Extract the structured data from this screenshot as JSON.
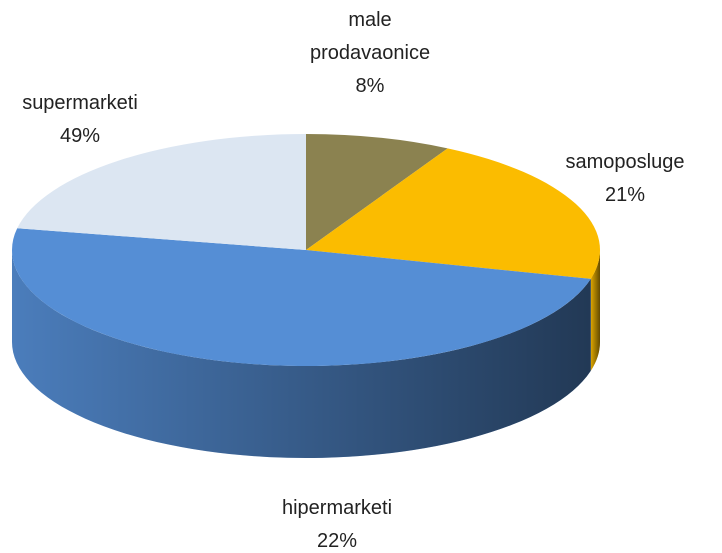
{
  "chart_data": {
    "type": "pie3d",
    "categories": [
      "male prodavaonice",
      "samoposluge",
      "supermarketi",
      "hipermarketi"
    ],
    "values": [
      8,
      21,
      49,
      22
    ],
    "value_labels": [
      "8%",
      "21%",
      "49%",
      "22%"
    ],
    "colors": [
      "#8b8250",
      "#fbbc00",
      "#558ed5",
      "#dce6f2"
    ]
  }
}
